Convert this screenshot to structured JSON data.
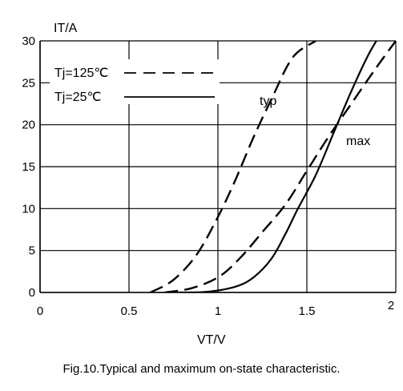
{
  "chart_data": {
    "type": "line",
    "ylabel": "IT/A",
    "xlabel": "VT/V",
    "xlim": [
      0,
      2
    ],
    "ylim": [
      0,
      30
    ],
    "x_ticks": [
      "0",
      "0.5",
      "1",
      "1.5",
      "2"
    ],
    "y_ticks": [
      "0",
      "5",
      "10",
      "15",
      "20",
      "25",
      "30"
    ],
    "grid": true,
    "legend": {
      "placement": "top-left",
      "entries": [
        {
          "label": "Tj=125℃",
          "style": "dashed"
        },
        {
          "label": "Tj=25℃",
          "style": "solid"
        }
      ]
    },
    "annotations": [
      "typ",
      "max"
    ],
    "series": [
      {
        "legend": "Tj=125℃",
        "curve": "typ",
        "style": "dashed",
        "x": [
          0.62,
          0.75,
          0.88,
          1.0,
          1.1,
          1.2,
          1.3,
          1.42,
          1.55
        ],
        "y": [
          0,
          1.5,
          4.5,
          9,
          13.5,
          18.5,
          23,
          28,
          30
        ]
      },
      {
        "legend": "Tj=125℃",
        "curve": "max",
        "style": "dashed",
        "x": [
          0.7,
          0.85,
          1.0,
          1.12,
          1.25,
          1.38,
          1.5,
          1.62,
          1.75,
          1.88,
          2.0
        ],
        "y": [
          0,
          0.5,
          1.8,
          4,
          7.2,
          10.5,
          14.5,
          18.5,
          22.5,
          26.5,
          30
        ]
      },
      {
        "legend": "Tj=25℃",
        "curve": "",
        "style": "solid",
        "x": [
          0.78,
          0.95,
          1.1,
          1.2,
          1.3,
          1.38,
          1.45,
          1.55,
          1.65,
          1.75,
          1.85,
          1.95
        ],
        "y": [
          0,
          0.1,
          0.7,
          1.8,
          4,
          7,
          10,
          14,
          19,
          24,
          28.5,
          32
        ]
      }
    ]
  },
  "caption": "Fig.10.Typical and maximum  on-state characteristic."
}
